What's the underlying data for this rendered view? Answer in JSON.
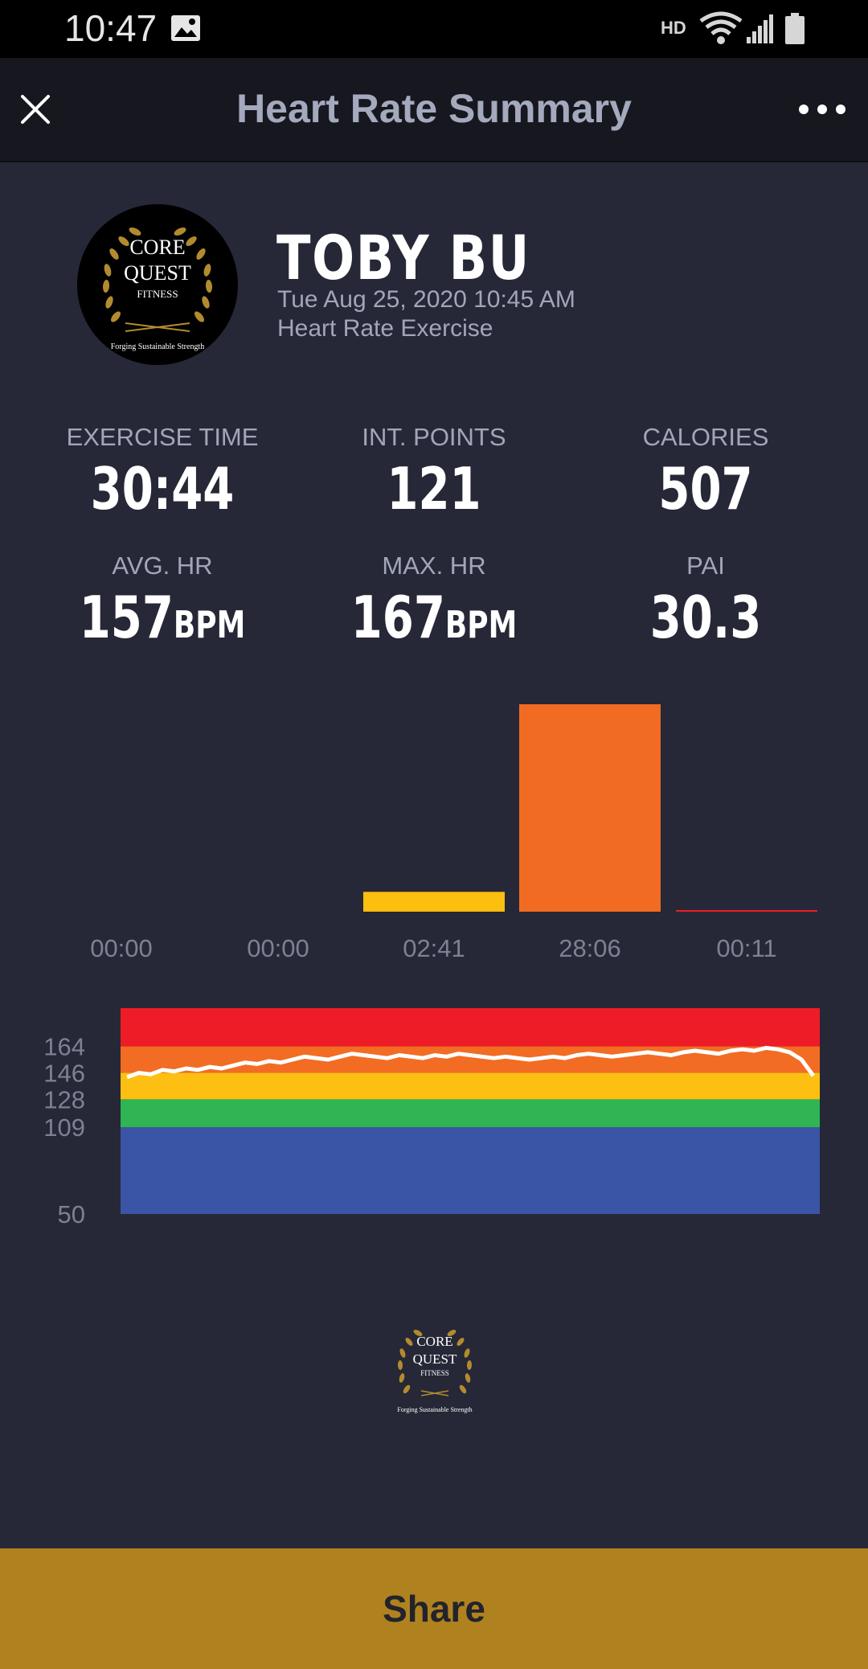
{
  "status_bar": {
    "time": "10:47",
    "hd_label": "HD",
    "icons": [
      "gallery-icon",
      "wifi-icon",
      "signal-icon",
      "battery-icon"
    ]
  },
  "app_bar": {
    "title": "Heart Rate Summary",
    "close_icon": "close-icon",
    "more_icon": "more-icon"
  },
  "profile": {
    "logo_text": [
      "CORE",
      "QUEST",
      "FITNESS",
      "Forging Sustainable Strength"
    ],
    "name": "TOBY  BU",
    "date": "Tue Aug 25, 2020 10:45 AM",
    "exercise_type": "Heart Rate Exercise"
  },
  "stats": {
    "exercise_time": {
      "label": "EXERCISE TIME",
      "value": "30:44"
    },
    "int_points": {
      "label": "INT. POINTS",
      "value": "121"
    },
    "calories": {
      "label": "CALORIES",
      "value": "507"
    },
    "avg_hr": {
      "label": "AVG. HR",
      "value": "157",
      "unit": "BPM"
    },
    "max_hr": {
      "label": "MAX. HR",
      "value": "167",
      "unit": "BPM"
    },
    "pai": {
      "label": "PAI",
      "value": "30.3"
    }
  },
  "chart_data": [
    {
      "type": "bar",
      "categories": [
        "00:00",
        "00:00",
        "02:41",
        "28:06",
        "00:11"
      ],
      "values": [
        0,
        0,
        161,
        1686,
        11
      ],
      "colors": [
        "#2f59a8",
        "#2db552",
        "#fdbf0f",
        "#f26b22",
        "#ee1c25"
      ],
      "title": "",
      "xlabel": "",
      "ylabel": ""
    },
    {
      "type": "line",
      "series": [
        {
          "values": [
            143,
            146,
            145,
            148,
            147,
            149,
            148,
            150,
            149,
            151,
            153,
            152,
            154,
            153,
            155,
            157,
            156,
            155,
            157,
            159,
            158,
            157,
            156,
            158,
            157,
            156,
            158,
            157,
            159,
            158,
            157,
            156,
            157,
            156,
            155,
            156,
            157,
            156,
            158,
            159,
            158,
            157,
            158,
            159,
            160,
            159,
            158,
            160,
            161,
            160,
            159,
            161,
            162,
            161,
            163,
            162,
            160,
            155,
            144
          ]
        }
      ],
      "zones": [
        {
          "range": [
            50,
            109
          ],
          "color": "#3a55a6"
        },
        {
          "range": [
            109,
            128
          ],
          "color": "#2fb553"
        },
        {
          "range": [
            128,
            146
          ],
          "color": "#fdbf11"
        },
        {
          "range": [
            146,
            164
          ],
          "color": "#f26c23"
        },
        {
          "range": [
            164,
            190
          ],
          "color": "#ee1c26"
        }
      ],
      "y_ticks": [
        "164",
        "146",
        "128",
        "109",
        "50"
      ],
      "ylim": [
        50,
        190
      ],
      "title": "",
      "xlabel": "",
      "ylabel": ""
    }
  ],
  "share_label": "Share"
}
